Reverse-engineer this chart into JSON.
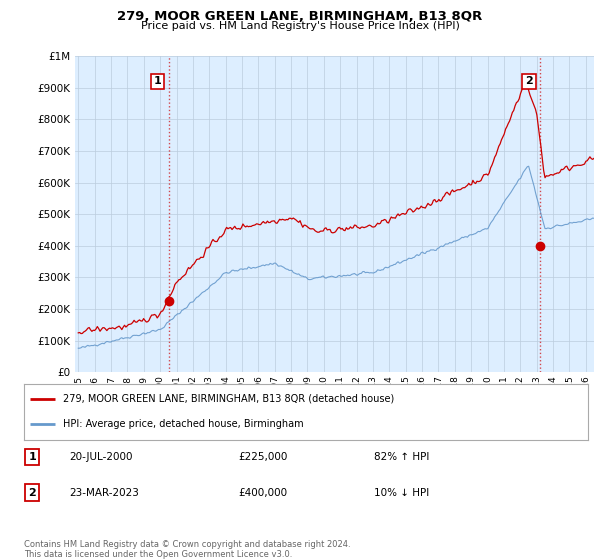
{
  "title": "279, MOOR GREEN LANE, BIRMINGHAM, B13 8QR",
  "subtitle": "Price paid vs. HM Land Registry's House Price Index (HPI)",
  "legend_line1": "279, MOOR GREEN LANE, BIRMINGHAM, B13 8QR (detached house)",
  "legend_line2": "HPI: Average price, detached house, Birmingham",
  "annotation1_label": "1",
  "annotation1_date": "20-JUL-2000",
  "annotation1_price": "£225,000",
  "annotation1_hpi": "82% ↑ HPI",
  "annotation2_label": "2",
  "annotation2_date": "23-MAR-2023",
  "annotation2_price": "£400,000",
  "annotation2_hpi": "10% ↓ HPI",
  "footer": "Contains HM Land Registry data © Crown copyright and database right 2024.\nThis data is licensed under the Open Government Licence v3.0.",
  "price_color": "#cc0000",
  "hpi_color": "#6699cc",
  "plot_bg_color": "#ddeeff",
  "fig_bg_color": "#ffffff",
  "grid_color": "#bbccdd",
  "purchase1_year": 2000.55,
  "purchase1_price": 225000,
  "purchase2_year": 2023.23,
  "purchase2_price": 400000,
  "ylim_min": 0,
  "ylim_max": 1000000,
  "xlim_min": 1994.8,
  "xlim_max": 2026.5
}
